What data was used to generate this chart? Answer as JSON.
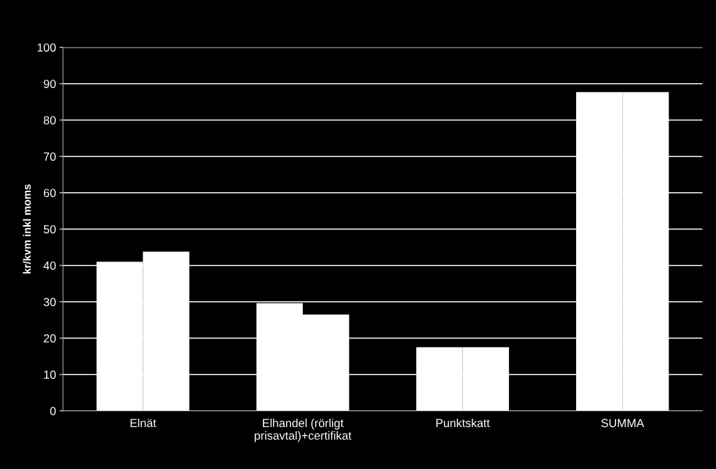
{
  "chart_data": {
    "type": "bar",
    "ylabel": "kr/kvm inkl moms",
    "categories": [
      "Elnät",
      "Elhandel (rörligt\nprisavtal)+certifikat",
      "Punktskatt",
      "SUMMA"
    ],
    "series": [
      {
        "color": "#ffffff",
        "values": [
          41,
          29.6,
          17.5,
          87.7
        ]
      },
      {
        "color": "#ffffff",
        "values": [
          43.8,
          26.5,
          17.5,
          87.7
        ]
      }
    ],
    "ylim": [
      0,
      100
    ],
    "yticks": [
      0,
      10,
      20,
      30,
      40,
      50,
      60,
      70,
      80,
      90,
      100
    ],
    "grid": "y",
    "legend": false
  }
}
